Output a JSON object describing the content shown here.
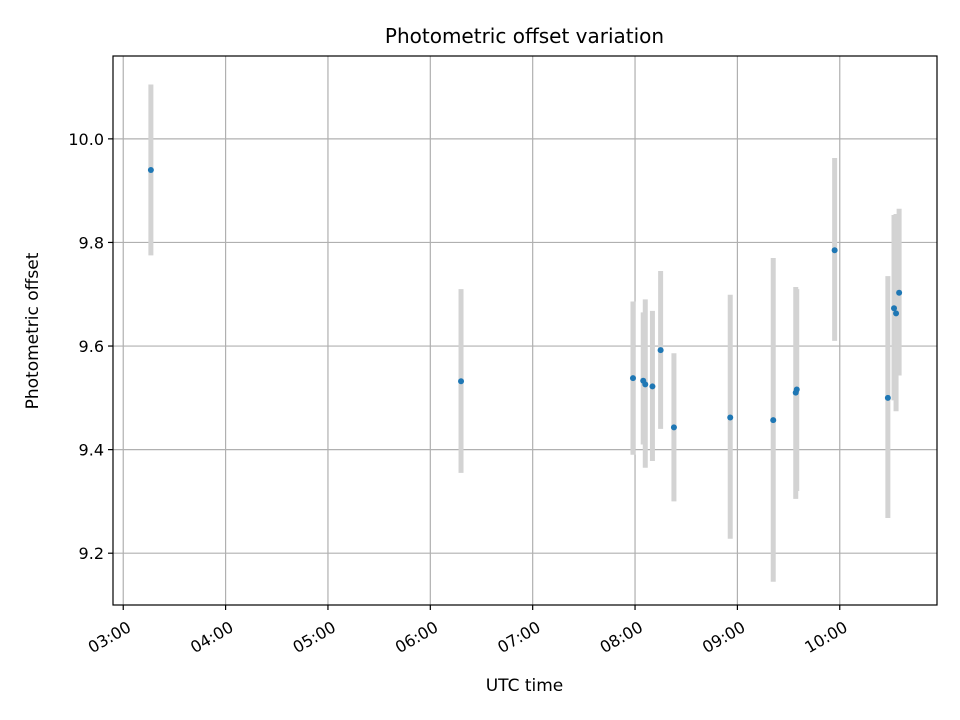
{
  "chart_data": {
    "type": "scatter",
    "title": "Photometric offset variation",
    "xlabel": "UTC time",
    "ylabel": "Photometric offset",
    "x_tick_labels": [
      "03:00",
      "04:00",
      "05:00",
      "06:00",
      "07:00",
      "08:00",
      "09:00",
      "10:00"
    ],
    "x_ticks_hours": [
      3,
      4,
      5,
      6,
      7,
      8,
      9,
      10
    ],
    "y_ticks": [
      9.2,
      9.4,
      9.6,
      9.8,
      10.0
    ],
    "y_tick_labels": [
      "9.2",
      "9.4",
      "9.6",
      "9.8",
      "10.0"
    ],
    "xlim_hours": [
      2.9,
      10.95
    ],
    "ylim": [
      9.1,
      10.16
    ],
    "grid": true,
    "colors": {
      "points": "#1f77b4",
      "errorbars": "#d3d3d3",
      "grid": "#b0b0b0"
    },
    "points": [
      {
        "t": 3.27,
        "y": 9.94,
        "lo": 9.775,
        "hi": 10.105
      },
      {
        "t": 6.3,
        "y": 9.532,
        "lo": 9.355,
        "hi": 9.71
      },
      {
        "t": 7.98,
        "y": 9.538,
        "lo": 9.39,
        "hi": 9.686
      },
      {
        "t": 8.08,
        "y": 9.533,
        "lo": 9.41,
        "hi": 9.665
      },
      {
        "t": 8.1,
        "y": 9.526,
        "lo": 9.365,
        "hi": 9.69
      },
      {
        "t": 8.17,
        "y": 9.522,
        "lo": 9.378,
        "hi": 9.668
      },
      {
        "t": 8.25,
        "y": 9.592,
        "lo": 9.44,
        "hi": 9.745
      },
      {
        "t": 8.38,
        "y": 9.443,
        "lo": 9.3,
        "hi": 9.586
      },
      {
        "t": 8.93,
        "y": 9.462,
        "lo": 9.228,
        "hi": 9.699
      },
      {
        "t": 9.35,
        "y": 9.457,
        "lo": 9.145,
        "hi": 9.77
      },
      {
        "t": 9.57,
        "y": 9.51,
        "lo": 9.305,
        "hi": 9.714
      },
      {
        "t": 9.58,
        "y": 9.516,
        "lo": 9.32,
        "hi": 9.71
      },
      {
        "t": 9.95,
        "y": 9.785,
        "lo": 9.61,
        "hi": 9.963
      },
      {
        "t": 10.47,
        "y": 9.5,
        "lo": 9.268,
        "hi": 9.735
      },
      {
        "t": 10.53,
        "y": 9.673,
        "lo": 9.495,
        "hi": 9.853
      },
      {
        "t": 10.55,
        "y": 9.663,
        "lo": 9.474,
        "hi": 9.855
      },
      {
        "t": 10.58,
        "y": 9.703,
        "lo": 9.543,
        "hi": 9.865
      }
    ]
  }
}
